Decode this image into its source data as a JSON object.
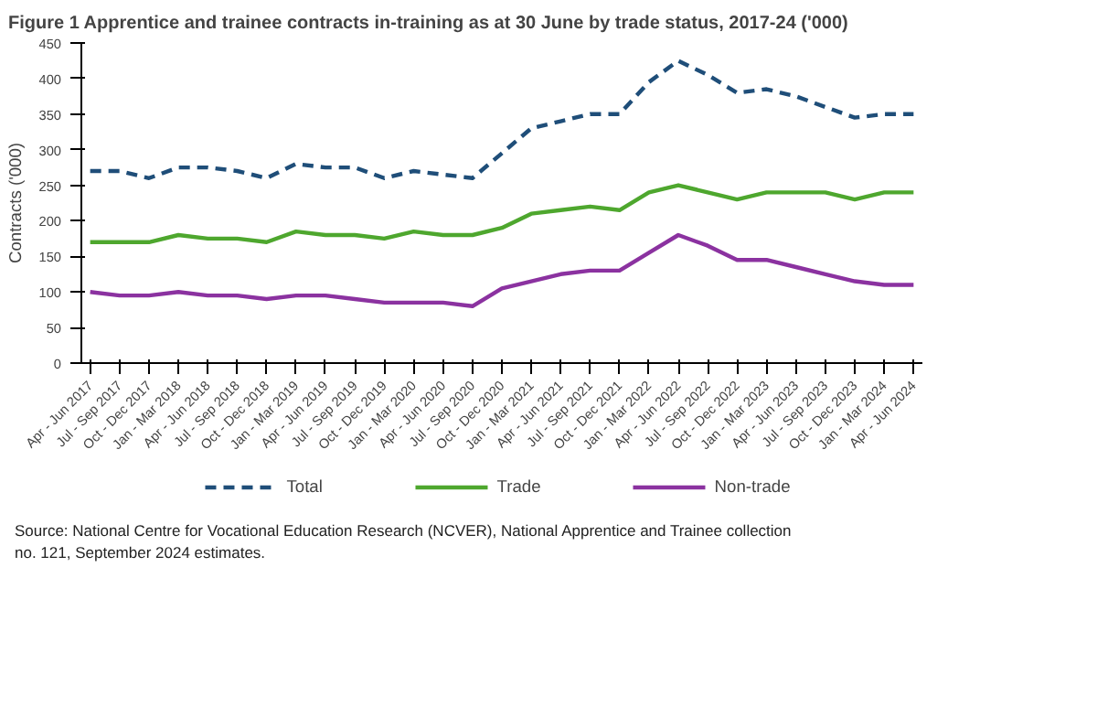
{
  "chart_data": {
    "type": "line",
    "title": "Figure 1     Apprentice and trainee contracts in-training as at 30 June by trade status, 2017-24 ('000)",
    "ylabel": "Contracts ('000)",
    "categories": [
      "Apr - Jun 2017",
      "Jul - Sep 2017",
      "Oct - Dec 2017",
      "Jan - Mar 2018",
      "Apr - Jun 2018",
      "Jul - Sep 2018",
      "Oct - Dec 2018",
      "Jan - Mar 2019",
      "Apr - Jun 2019",
      "Jul - Sep 2019",
      "Oct - Dec 2019",
      "Jan - Mar 2020",
      "Apr - Jun 2020",
      "Jul - Sep 2020",
      "Oct - Dec 2020",
      "Jan - Mar 2021",
      "Apr - Jun 2021",
      "Jul - Sep 2021",
      "Oct - Dec 2021",
      "Jan - Mar 2022",
      "Apr - Jun 2022",
      "Jul - Sep 2022",
      "Oct - Dec 2022",
      "Jan - Mar 2023",
      "Apr - Jun 2023",
      "Jul - Sep 2023",
      "Oct - Dec 2023",
      "Jan - Mar 2024",
      "Apr - Jun 2024"
    ],
    "series": [
      {
        "name": "Total",
        "color": "#1f4e79",
        "line_style": "dashed",
        "values": [
          270,
          270,
          260,
          275,
          275,
          270,
          260,
          280,
          275,
          275,
          260,
          270,
          265,
          260,
          295,
          330,
          340,
          350,
          350,
          395,
          425,
          405,
          380,
          385,
          375,
          360,
          345,
          350,
          350
        ]
      },
      {
        "name": "Trade",
        "color": "#4ea72e",
        "values": [
          170,
          170,
          170,
          180,
          175,
          175,
          170,
          185,
          180,
          180,
          175,
          185,
          180,
          180,
          190,
          210,
          215,
          220,
          215,
          240,
          250,
          240,
          230,
          240,
          240,
          240,
          230,
          240,
          240
        ]
      },
      {
        "name": "Non-trade",
        "color": "#8b32a0",
        "values": [
          100,
          95,
          95,
          100,
          95,
          95,
          90,
          95,
          95,
          90,
          85,
          85,
          85,
          80,
          105,
          115,
          125,
          130,
          130,
          155,
          180,
          165,
          145,
          145,
          135,
          125,
          115,
          110,
          110
        ]
      }
    ],
    "ylim": [
      0,
      450
    ],
    "yticks": [
      0,
      50,
      100,
      150,
      200,
      250,
      300,
      350,
      400,
      450
    ],
    "legend": "bottom",
    "line_style": "solid",
    "annotations": [
      "Source: National Centre for Vocational Education Research (NCVER), National Apprentice and Trainee collection no. 121, September 2024 estimates."
    ]
  }
}
